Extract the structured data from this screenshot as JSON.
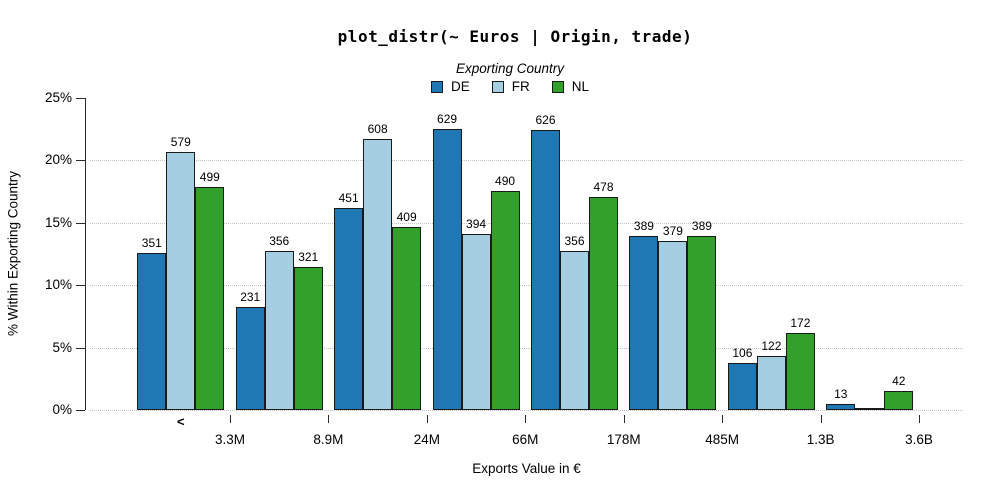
{
  "chart_data": {
    "type": "bar",
    "title": "plot_distr(~ Euros | Origin, trade)",
    "xlabel": "Exports Value in €",
    "ylabel": "% Within Exporting Country",
    "ylim": [
      0,
      25
    ],
    "ytick_values": [
      0,
      5,
      10,
      15,
      20,
      25
    ],
    "ytick_labels": [
      "0%",
      "5%",
      "10%",
      "15%",
      "20%",
      "25%"
    ],
    "gridline_values": [
      0,
      5,
      10,
      15,
      20
    ],
    "grid_style": "dotted-horizontal",
    "first_bin_marker": "<",
    "x_bin_boundary_labels": [
      "3.3M",
      "8.9M",
      "24M",
      "66M",
      "178M",
      "485M",
      "1.3B",
      "3.6B"
    ],
    "legend_title": "Exporting Country",
    "legend_position": "top-center",
    "bar_border_color": "#1a1a1a",
    "series": [
      {
        "name": "DE",
        "color": "#1f78b4",
        "counts": [
          351,
          231,
          451,
          629,
          626,
          389,
          106,
          13
        ],
        "percents": [
          12.55,
          8.26,
          16.13,
          22.5,
          22.39,
          13.91,
          3.79,
          0.46
        ]
      },
      {
        "name": "FR",
        "color": "#a6cee3",
        "counts": [
          579,
          356,
          608,
          394,
          356,
          379,
          122,
          null
        ],
        "percents": [
          20.68,
          12.71,
          21.71,
          14.07,
          12.71,
          13.54,
          4.36,
          0.07
        ]
      },
      {
        "name": "NL",
        "color": "#33a02c",
        "counts": [
          499,
          321,
          409,
          490,
          478,
          389,
          172,
          42
        ],
        "percents": [
          17.82,
          11.46,
          14.61,
          17.5,
          17.07,
          13.89,
          6.14,
          1.5
        ]
      }
    ]
  }
}
